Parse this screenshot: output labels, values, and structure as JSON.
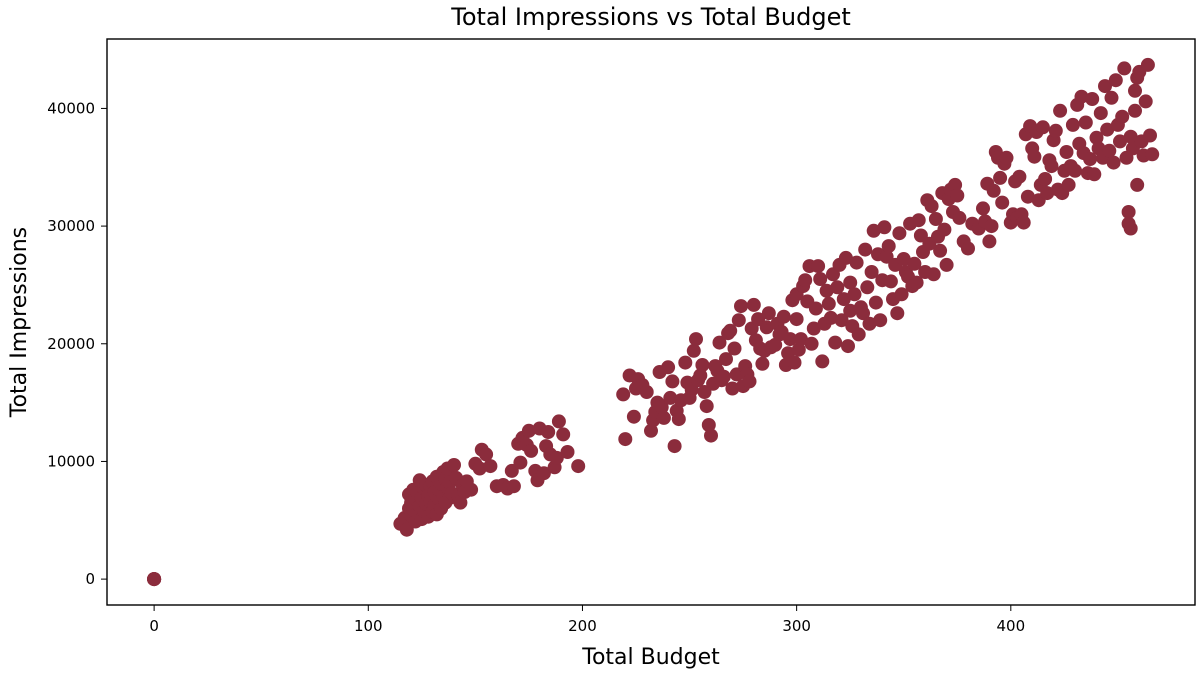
{
  "chart_data": {
    "type": "scatter",
    "title": "Total Impressions vs Total Budget",
    "xlabel": "Total Budget",
    "ylabel": "Total Impressions",
    "xlim": [
      -22,
      486
    ],
    "ylim": [
      -2200,
      45900
    ],
    "xticks": [
      0,
      100,
      200,
      300,
      400
    ],
    "yticks": [
      0,
      10000,
      20000,
      30000,
      40000
    ],
    "grid": false,
    "marker_color": "#8b2c3c",
    "points": [
      [
        0,
        0
      ],
      [
        0,
        0
      ],
      [
        0,
        0
      ],
      [
        0,
        0
      ],
      [
        0,
        0
      ],
      [
        115,
        4700
      ],
      [
        117,
        5200
      ],
      [
        118,
        4200
      ],
      [
        119,
        6000
      ],
      [
        119,
        7200
      ],
      [
        120,
        5400
      ],
      [
        120,
        6500
      ],
      [
        121,
        7600
      ],
      [
        121,
        5900
      ],
      [
        122,
        4900
      ],
      [
        122,
        6800
      ],
      [
        123,
        7300
      ],
      [
        123,
        5600
      ],
      [
        124,
        6200
      ],
      [
        124,
        8400
      ],
      [
        125,
        5100
      ],
      [
        125,
        6900
      ],
      [
        126,
        7700
      ],
      [
        126,
        5800
      ],
      [
        127,
        6400
      ],
      [
        127,
        8000
      ],
      [
        128,
        5300
      ],
      [
        128,
        7100
      ],
      [
        129,
        6600
      ],
      [
        129,
        7900
      ],
      [
        130,
        5700
      ],
      [
        130,
        8300
      ],
      [
        131,
        6300
      ],
      [
        131,
        7400
      ],
      [
        132,
        5500
      ],
      [
        132,
        8700
      ],
      [
        133,
        6800
      ],
      [
        133,
        7600
      ],
      [
        134,
        6000
      ],
      [
        134,
        8100
      ],
      [
        135,
        9100
      ],
      [
        135,
        7000
      ],
      [
        136,
        6500
      ],
      [
        136,
        8500
      ],
      [
        137,
        7800
      ],
      [
        137,
        9400
      ],
      [
        138,
        6900
      ],
      [
        138,
        8200
      ],
      [
        139,
        7300
      ],
      [
        140,
        9700
      ],
      [
        141,
        8600
      ],
      [
        142,
        7100
      ],
      [
        143,
        6500
      ],
      [
        144,
        8000
      ],
      [
        145,
        7400
      ],
      [
        146,
        8300
      ],
      [
        148,
        7600
      ],
      [
        150,
        9800
      ],
      [
        152,
        9400
      ],
      [
        153,
        11000
      ],
      [
        155,
        10600
      ],
      [
        157,
        9600
      ],
      [
        160,
        7900
      ],
      [
        163,
        8000
      ],
      [
        165,
        7700
      ],
      [
        167,
        9200
      ],
      [
        168,
        7900
      ],
      [
        170,
        11500
      ],
      [
        171,
        9900
      ],
      [
        172,
        12000
      ],
      [
        174,
        11400
      ],
      [
        175,
        12600
      ],
      [
        176,
        10900
      ],
      [
        178,
        9200
      ],
      [
        179,
        8400
      ],
      [
        180,
        12800
      ],
      [
        182,
        9000
      ],
      [
        183,
        11300
      ],
      [
        184,
        12500
      ],
      [
        185,
        10600
      ],
      [
        187,
        9500
      ],
      [
        188,
        10300
      ],
      [
        189,
        13400
      ],
      [
        191,
        12300
      ],
      [
        193,
        10800
      ],
      [
        198,
        9600
      ],
      [
        219,
        15700
      ],
      [
        220,
        11900
      ],
      [
        222,
        17300
      ],
      [
        224,
        13800
      ],
      [
        225,
        16200
      ],
      [
        226,
        17000
      ],
      [
        228,
        16500
      ],
      [
        230,
        15900
      ],
      [
        232,
        12600
      ],
      [
        233,
        13500
      ],
      [
        234,
        14200
      ],
      [
        235,
        15000
      ],
      [
        236,
        17600
      ],
      [
        237,
        14600
      ],
      [
        238,
        13700
      ],
      [
        240,
        18000
      ],
      [
        241,
        15400
      ],
      [
        242,
        16800
      ],
      [
        243,
        11300
      ],
      [
        244,
        14300
      ],
      [
        245,
        13600
      ],
      [
        246,
        15200
      ],
      [
        248,
        18400
      ],
      [
        249,
        16700
      ],
      [
        250,
        15400
      ],
      [
        251,
        16100
      ],
      [
        252,
        19400
      ],
      [
        253,
        20400
      ],
      [
        254,
        16900
      ],
      [
        255,
        17300
      ],
      [
        256,
        18200
      ],
      [
        257,
        15900
      ],
      [
        258,
        14700
      ],
      [
        259,
        13100
      ],
      [
        260,
        12200
      ],
      [
        261,
        16600
      ],
      [
        262,
        18100
      ],
      [
        263,
        17700
      ],
      [
        264,
        20100
      ],
      [
        265,
        16900
      ],
      [
        266,
        17200
      ],
      [
        267,
        18700
      ],
      [
        268,
        20900
      ],
      [
        269,
        21100
      ],
      [
        270,
        16200
      ],
      [
        271,
        19600
      ],
      [
        272,
        17400
      ],
      [
        273,
        22000
      ],
      [
        274,
        23200
      ],
      [
        275,
        16400
      ],
      [
        276,
        18100
      ],
      [
        277,
        17400
      ],
      [
        278,
        16800
      ],
      [
        279,
        21300
      ],
      [
        280,
        23300
      ],
      [
        281,
        20300
      ],
      [
        282,
        22100
      ],
      [
        283,
        19600
      ],
      [
        284,
        18300
      ],
      [
        285,
        19400
      ],
      [
        286,
        21400
      ],
      [
        287,
        22600
      ],
      [
        288,
        19700
      ],
      [
        290,
        19900
      ],
      [
        291,
        21700
      ],
      [
        292,
        20800
      ],
      [
        293,
        21000
      ],
      [
        294,
        22300
      ],
      [
        295,
        18200
      ],
      [
        296,
        19200
      ],
      [
        297,
        20400
      ],
      [
        298,
        23700
      ],
      [
        299,
        18400
      ],
      [
        300,
        24200
      ],
      [
        300,
        22100
      ],
      [
        301,
        19500
      ],
      [
        302,
        20400
      ],
      [
        303,
        24900
      ],
      [
        304,
        25400
      ],
      [
        305,
        23600
      ],
      [
        306,
        26600
      ],
      [
        307,
        20000
      ],
      [
        308,
        21300
      ],
      [
        309,
        23000
      ],
      [
        310,
        26600
      ],
      [
        311,
        25500
      ],
      [
        312,
        18500
      ],
      [
        313,
        21700
      ],
      [
        314,
        24500
      ],
      [
        315,
        23400
      ],
      [
        316,
        22200
      ],
      [
        317,
        25900
      ],
      [
        318,
        20100
      ],
      [
        319,
        24800
      ],
      [
        320,
        26700
      ],
      [
        321,
        22000
      ],
      [
        322,
        23800
      ],
      [
        323,
        27300
      ],
      [
        324,
        19800
      ],
      [
        325,
        22800
      ],
      [
        325,
        25200
      ],
      [
        326,
        21500
      ],
      [
        327,
        24200
      ],
      [
        328,
        26900
      ],
      [
        329,
        20800
      ],
      [
        330,
        23100
      ],
      [
        331,
        22600
      ],
      [
        332,
        28000
      ],
      [
        333,
        24800
      ],
      [
        334,
        21700
      ],
      [
        335,
        26100
      ],
      [
        336,
        29600
      ],
      [
        337,
        23500
      ],
      [
        338,
        27600
      ],
      [
        339,
        22000
      ],
      [
        340,
        25400
      ],
      [
        341,
        29900
      ],
      [
        342,
        27400
      ],
      [
        343,
        28300
      ],
      [
        344,
        25300
      ],
      [
        345,
        23800
      ],
      [
        346,
        26700
      ],
      [
        347,
        22600
      ],
      [
        348,
        29400
      ],
      [
        349,
        24200
      ],
      [
        350,
        27200
      ],
      [
        351,
        26100
      ],
      [
        352,
        25700
      ],
      [
        353,
        30200
      ],
      [
        354,
        24900
      ],
      [
        355,
        26800
      ],
      [
        356,
        25200
      ],
      [
        357,
        30500
      ],
      [
        358,
        29200
      ],
      [
        359,
        27800
      ],
      [
        360,
        26100
      ],
      [
        361,
        32200
      ],
      [
        362,
        28500
      ],
      [
        363,
        31700
      ],
      [
        364,
        25900
      ],
      [
        365,
        30600
      ],
      [
        366,
        29100
      ],
      [
        367,
        27900
      ],
      [
        368,
        32800
      ],
      [
        369,
        29700
      ],
      [
        370,
        26700
      ],
      [
        371,
        32300
      ],
      [
        372,
        33100
      ],
      [
        373,
        31200
      ],
      [
        374,
        33500
      ],
      [
        375,
        32600
      ],
      [
        376,
        30700
      ],
      [
        378,
        28700
      ],
      [
        380,
        28100
      ],
      [
        382,
        30200
      ],
      [
        385,
        29800
      ],
      [
        387,
        31500
      ],
      [
        388,
        30400
      ],
      [
        389,
        33600
      ],
      [
        390,
        28700
      ],
      [
        391,
        30000
      ],
      [
        392,
        33000
      ],
      [
        393,
        36300
      ],
      [
        394,
        35800
      ],
      [
        395,
        34100
      ],
      [
        396,
        32000
      ],
      [
        397,
        35300
      ],
      [
        398,
        35800
      ],
      [
        400,
        30300
      ],
      [
        401,
        31000
      ],
      [
        402,
        33800
      ],
      [
        403,
        30700
      ],
      [
        404,
        34200
      ],
      [
        405,
        31000
      ],
      [
        406,
        30300
      ],
      [
        407,
        37800
      ],
      [
        408,
        32500
      ],
      [
        409,
        38500
      ],
      [
        410,
        36600
      ],
      [
        411,
        35900
      ],
      [
        412,
        38000
      ],
      [
        413,
        32200
      ],
      [
        414,
        33500
      ],
      [
        415,
        38400
      ],
      [
        416,
        34000
      ],
      [
        417,
        32800
      ],
      [
        418,
        35600
      ],
      [
        419,
        35100
      ],
      [
        420,
        37300
      ],
      [
        421,
        38100
      ],
      [
        422,
        33100
      ],
      [
        423,
        39800
      ],
      [
        424,
        32800
      ],
      [
        425,
        34700
      ],
      [
        426,
        36300
      ],
      [
        427,
        33500
      ],
      [
        428,
        35100
      ],
      [
        429,
        38600
      ],
      [
        430,
        34700
      ],
      [
        431,
        40300
      ],
      [
        432,
        37000
      ],
      [
        433,
        41000
      ],
      [
        434,
        36200
      ],
      [
        435,
        38800
      ],
      [
        436,
        34500
      ],
      [
        437,
        35700
      ],
      [
        438,
        40800
      ],
      [
        439,
        34400
      ],
      [
        440,
        37500
      ],
      [
        441,
        36600
      ],
      [
        442,
        39600
      ],
      [
        443,
        35800
      ],
      [
        444,
        41900
      ],
      [
        445,
        38200
      ],
      [
        446,
        36400
      ],
      [
        447,
        40900
      ],
      [
        448,
        35400
      ],
      [
        449,
        42400
      ],
      [
        450,
        38600
      ],
      [
        451,
        37200
      ],
      [
        452,
        39300
      ],
      [
        453,
        43400
      ],
      [
        454,
        35800
      ],
      [
        455,
        31200
      ],
      [
        455,
        30200
      ],
      [
        456,
        29800
      ],
      [
        456,
        37600
      ],
      [
        457,
        36600
      ],
      [
        458,
        41500
      ],
      [
        458,
        39800
      ],
      [
        459,
        33500
      ],
      [
        459,
        42600
      ],
      [
        460,
        43100
      ],
      [
        461,
        37200
      ],
      [
        462,
        36000
      ],
      [
        463,
        40600
      ],
      [
        464,
        43700
      ],
      [
        465,
        37700
      ],
      [
        466,
        36100
      ]
    ]
  }
}
